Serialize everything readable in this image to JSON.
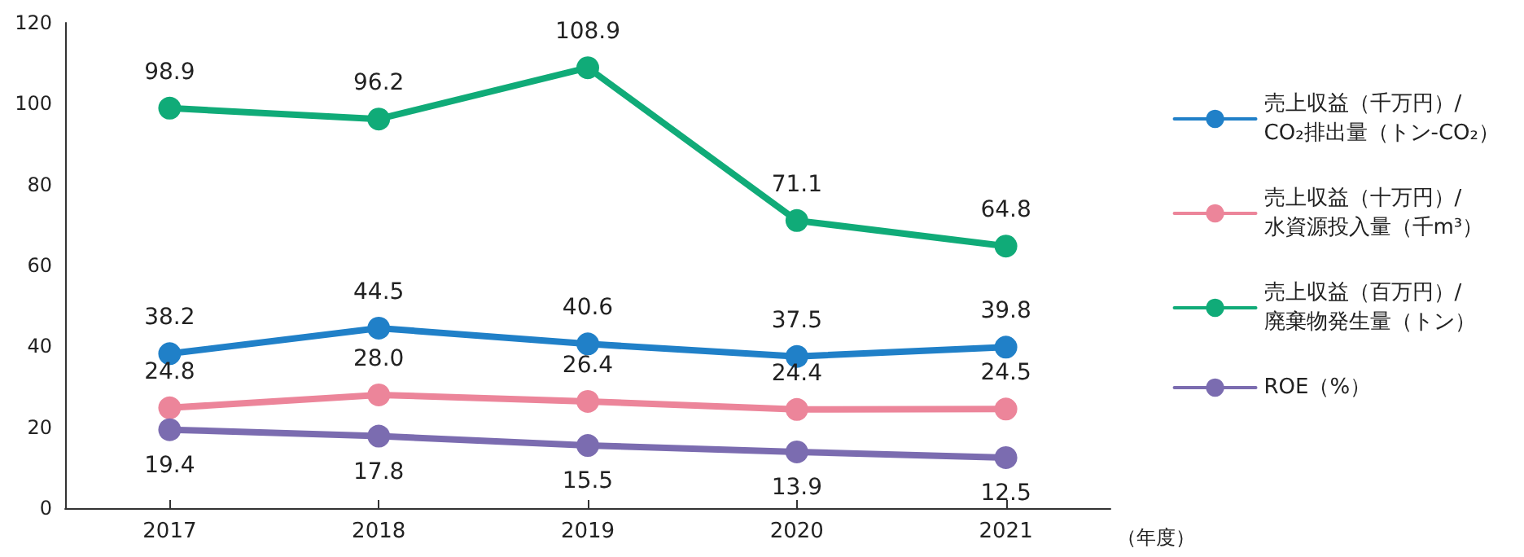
{
  "chart_data": {
    "type": "line",
    "xlabel": "（年度）",
    "categories": [
      "2017",
      "2018",
      "2019",
      "2020",
      "2021"
    ],
    "series": [
      {
        "name": "売上収益（千万円）/CO₂排出量（トン-CO₂）",
        "color": "#2080c8",
        "values": [
          38.2,
          44.5,
          40.6,
          37.5,
          39.8
        ],
        "value_labels": [
          "38.2",
          "44.5",
          "40.6",
          "37.5",
          "39.8"
        ]
      },
      {
        "name": "売上収益（十万円）/水資源投入量（千m³）",
        "color": "#ec859a",
        "values": [
          24.8,
          28.0,
          26.4,
          24.4,
          24.5
        ],
        "value_labels": [
          "24.8",
          "28.0",
          "26.4",
          "24.4",
          "24.5"
        ]
      },
      {
        "name": "売上収益（百万円）/廃棄物発生量（トン）",
        "color": "#10ab78",
        "values": [
          98.9,
          96.2,
          108.9,
          71.1,
          64.8
        ],
        "value_labels": [
          "98.9",
          "96.2",
          "108.9",
          "71.1",
          "64.8"
        ]
      },
      {
        "name": "ROE（%）",
        "color": "#7b6cb0",
        "values": [
          19.4,
          17.8,
          15.5,
          13.9,
          12.5
        ],
        "value_labels": [
          "19.4",
          "17.8",
          "15.5",
          "13.9",
          "12.5"
        ]
      }
    ],
    "ylim": [
      0,
      120
    ],
    "yticks": [
      0,
      20,
      40,
      60,
      80,
      100,
      120
    ],
    "grid": false,
    "legend": "right",
    "marker": "circle",
    "line_style": "solid"
  }
}
